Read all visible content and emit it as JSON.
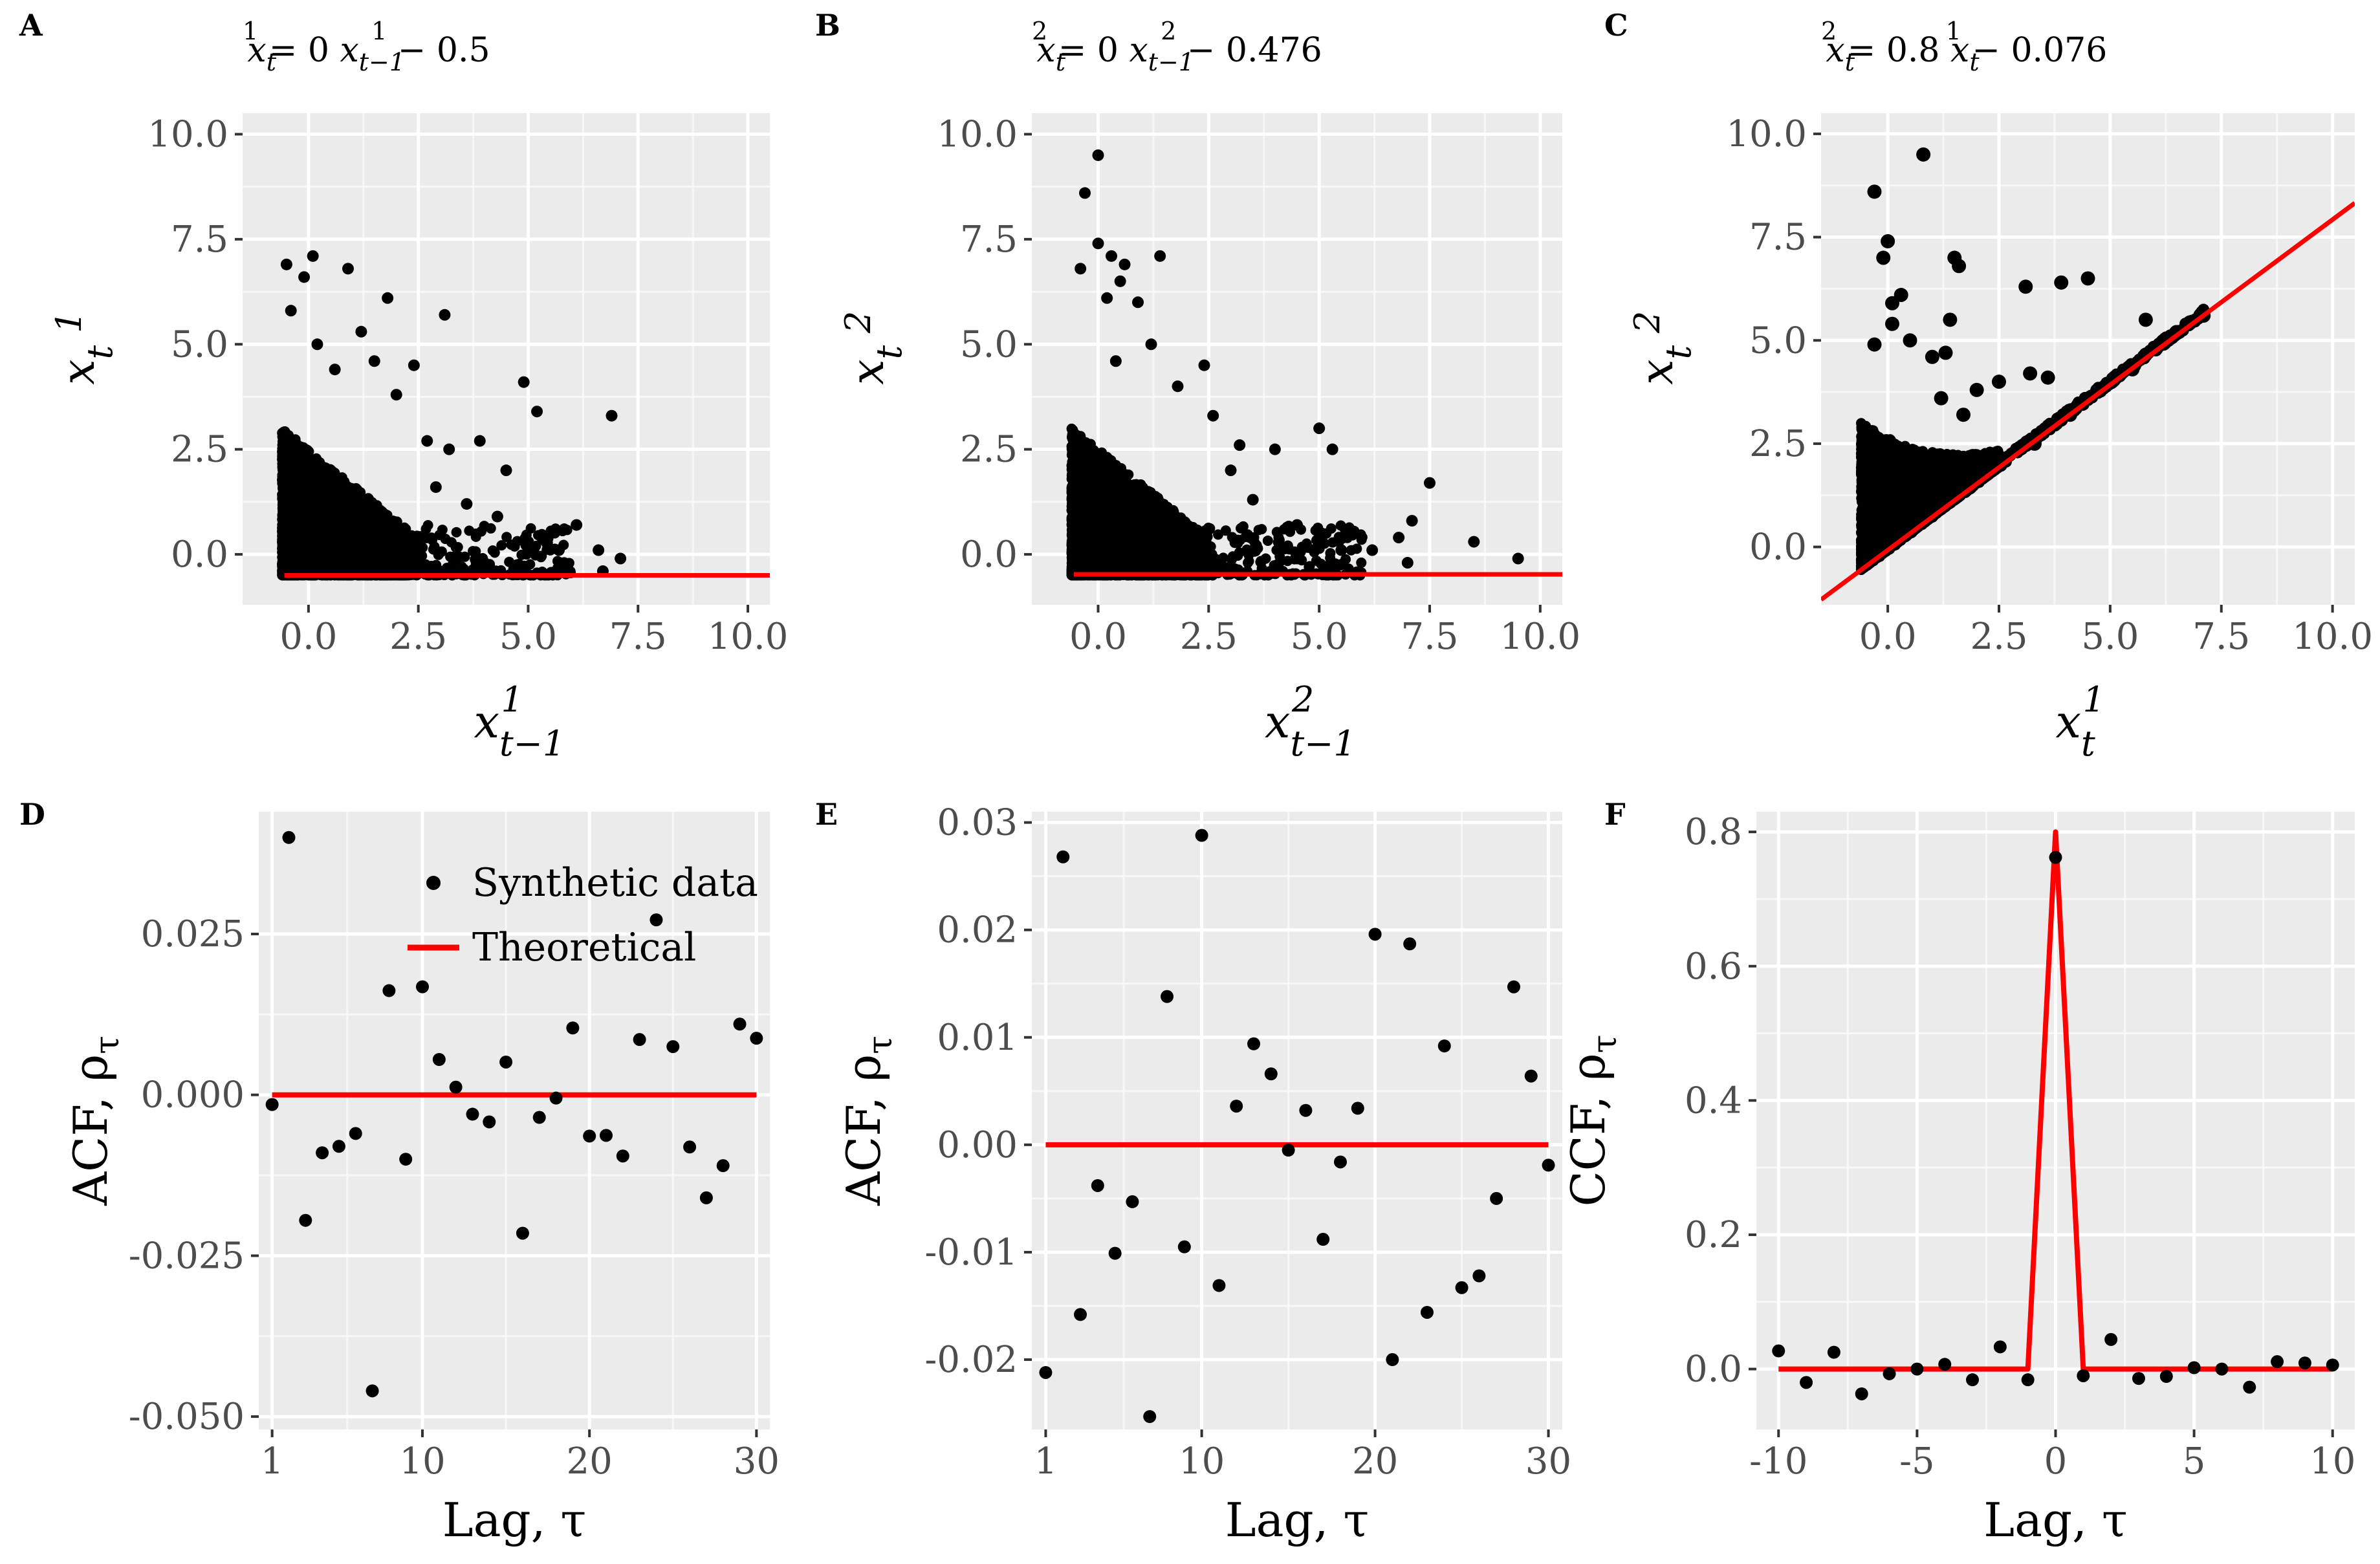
{
  "figure": {
    "panels_labels": [
      "A",
      "B",
      "C",
      "D",
      "E",
      "F"
    ]
  },
  "chart_data": [
    {
      "id": "A",
      "type": "scatter",
      "title": "x_t^1 = 0 x_{t-1}^1 - 0.5",
      "title_parts": {
        "lhs": "x",
        "lhs_sub": "t",
        "lhs_sup": "1",
        "eq": " = 0 ",
        "rhs": "x",
        "rhs_sub": "t−1",
        "rhs_sup": "1",
        "tail": " − 0.5"
      },
      "xlabel": {
        "base": "x",
        "sub": "t−1",
        "sup": "1"
      },
      "ylabel": {
        "base": "x",
        "sub": "t",
        "sup": "1"
      },
      "xlim": [
        -1.5,
        10.5
      ],
      "ylim": [
        -1.2,
        10.5
      ],
      "xticks": [
        "0.0",
        "2.5",
        "5.0",
        "7.5",
        "10.0"
      ],
      "xtick_values": [
        0,
        2.5,
        5,
        7.5,
        10
      ],
      "yticks": [
        "0.0",
        "2.5",
        "5.0",
        "7.5",
        "10.0"
      ],
      "ytick_values": [
        0,
        2.5,
        5,
        7.5,
        10
      ],
      "line": {
        "intercept": -0.5,
        "slope": 0,
        "color": "#ff0000"
      },
      "points": [
        [
          -0.5,
          6.9
        ],
        [
          0.1,
          7.1
        ],
        [
          -0.1,
          6.6
        ],
        [
          0.9,
          6.8
        ],
        [
          -0.4,
          5.8
        ],
        [
          1.8,
          6.1
        ],
        [
          3.1,
          5.7
        ],
        [
          2.4,
          4.5
        ],
        [
          1.2,
          5.3
        ],
        [
          0.2,
          5.0
        ],
        [
          4.9,
          4.1
        ],
        [
          5.2,
          3.4
        ],
        [
          6.9,
          3.3
        ],
        [
          3.9,
          2.7
        ],
        [
          4.5,
          2.0
        ],
        [
          3.2,
          2.5
        ],
        [
          6.1,
          0.7
        ],
        [
          6.6,
          0.1
        ],
        [
          7.1,
          -0.1
        ],
        [
          5.0,
          0.3
        ],
        [
          4.3,
          0.9
        ],
        [
          2.7,
          2.7
        ],
        [
          2.0,
          3.8
        ],
        [
          1.5,
          4.6
        ],
        [
          0.6,
          4.4
        ],
        [
          2.9,
          1.6
        ],
        [
          3.6,
          1.2
        ],
        [
          5.7,
          0.1
        ],
        [
          6.7,
          -0.4
        ],
        [
          4.0,
          -0.2
        ]
      ],
      "dense_extent": {
        "x": [
          -0.6,
          2.5
        ],
        "y": [
          -0.5,
          3.0
        ]
      }
    },
    {
      "id": "B",
      "type": "scatter",
      "title_parts": {
        "lhs": "x",
        "lhs_sub": "t",
        "lhs_sup": "2",
        "eq": " = 0 ",
        "rhs": "x",
        "rhs_sub": "t−1",
        "rhs_sup": "2",
        "tail": " − 0.476"
      },
      "xlabel": {
        "base": "x",
        "sub": "t−1",
        "sup": "2"
      },
      "ylabel": {
        "base": "x",
        "sub": "t",
        "sup": "2"
      },
      "xlim": [
        -1.5,
        10.5
      ],
      "ylim": [
        -1.2,
        10.5
      ],
      "xticks": [
        "0.0",
        "2.5",
        "5.0",
        "7.5",
        "10.0"
      ],
      "xtick_values": [
        0,
        2.5,
        5,
        7.5,
        10
      ],
      "yticks": [
        "0.0",
        "2.5",
        "5.0",
        "7.5",
        "10.0"
      ],
      "ytick_values": [
        0,
        2.5,
        5,
        7.5,
        10
      ],
      "line": {
        "intercept": -0.476,
        "slope": 0,
        "color": "#ff0000"
      },
      "points": [
        [
          0.0,
          9.5
        ],
        [
          -0.3,
          8.6
        ],
        [
          0.0,
          7.4
        ],
        [
          -0.4,
          6.8
        ],
        [
          0.3,
          7.1
        ],
        [
          0.6,
          6.9
        ],
        [
          1.4,
          7.1
        ],
        [
          0.5,
          6.5
        ],
        [
          0.9,
          6.0
        ],
        [
          0.2,
          6.1
        ],
        [
          2.4,
          4.5
        ],
        [
          2.6,
          3.3
        ],
        [
          3.0,
          2.0
        ],
        [
          3.2,
          2.6
        ],
        [
          4.0,
          2.5
        ],
        [
          5.0,
          3.0
        ],
        [
          5.3,
          2.5
        ],
        [
          7.5,
          1.7
        ],
        [
          7.1,
          0.8
        ],
        [
          6.8,
          0.4
        ],
        [
          8.5,
          0.3
        ],
        [
          9.5,
          -0.1
        ],
        [
          7.0,
          -0.2
        ],
        [
          6.2,
          0.1
        ],
        [
          5.5,
          0.1
        ],
        [
          4.5,
          0.7
        ],
        [
          1.8,
          4.0
        ],
        [
          1.2,
          5.0
        ],
        [
          0.4,
          4.6
        ],
        [
          3.5,
          1.3
        ]
      ],
      "dense_extent": {
        "x": [
          -0.6,
          2.5
        ],
        "y": [
          -0.5,
          3.0
        ]
      }
    },
    {
      "id": "C",
      "type": "scatter",
      "title_parts": {
        "lhs": "x",
        "lhs_sub": "t",
        "lhs_sup": "2",
        "eq": " = 0.8 ",
        "rhs": "x",
        "rhs_sub": "t",
        "rhs_sup": "1",
        "tail": " − 0.076"
      },
      "xlabel": {
        "base": "x",
        "sub": "t",
        "sup": "1"
      },
      "ylabel": {
        "base": "x",
        "sub": "t",
        "sup": "2"
      },
      "xlim": [
        -1.5,
        10.5
      ],
      "ylim": [
        -1.4,
        10.5
      ],
      "xticks": [
        "0.0",
        "2.5",
        "5.0",
        "7.5",
        "10.0"
      ],
      "xtick_values": [
        0,
        2.5,
        5,
        7.5,
        10
      ],
      "yticks": [
        "0.0",
        "2.5",
        "5.0",
        "7.5",
        "10.0"
      ],
      "ytick_values": [
        0,
        2.5,
        5,
        7.5,
        10
      ],
      "line": {
        "intercept": -0.076,
        "slope": 0.8,
        "color": "#ff0000"
      },
      "points": [
        [
          -0.3,
          8.6
        ],
        [
          0.8,
          9.5
        ],
        [
          0.0,
          7.4
        ],
        [
          -0.1,
          7.0
        ],
        [
          1.5,
          7.0
        ],
        [
          1.6,
          6.8
        ],
        [
          0.3,
          6.1
        ],
        [
          0.1,
          5.9
        ],
        [
          1.3,
          4.7
        ],
        [
          1.4,
          5.5
        ],
        [
          1.0,
          4.6
        ],
        [
          3.1,
          6.3
        ],
        [
          3.9,
          6.4
        ],
        [
          4.5,
          6.5
        ],
        [
          3.2,
          4.2
        ],
        [
          3.6,
          4.1
        ],
        [
          2.5,
          4.0
        ],
        [
          2.0,
          3.8
        ],
        [
          1.7,
          3.2
        ],
        [
          1.2,
          3.6
        ],
        [
          0.5,
          5.0
        ],
        [
          -0.3,
          4.9
        ],
        [
          0.1,
          5.4
        ],
        [
          5.8,
          5.5
        ],
        [
          6.5,
          5.2
        ],
        [
          7.1,
          5.6
        ],
        [
          5.5,
          4.3
        ],
        [
          4.9,
          3.9
        ],
        [
          4.1,
          3.2
        ],
        [
          3.3,
          2.5
        ]
      ],
      "dense_extent": {
        "x": [
          -0.6,
          2.5
        ],
        "y": [
          -0.5,
          3.0
        ]
      }
    },
    {
      "id": "D",
      "type": "scatter+line",
      "xlabel": "Lag, τ",
      "ylabel": "ACF,  ρ",
      "ylabel_sub": "τ",
      "xlim": [
        0.2,
        30.8
      ],
      "ylim": [
        -0.052,
        0.044
      ],
      "xticks": [
        "1",
        "10",
        "20",
        "30"
      ],
      "xtick_values": [
        1,
        10,
        20,
        30
      ],
      "yticks": [
        "0.025",
        "0.000",
        "-0.025",
        "-0.050"
      ],
      "ytick_values": [
        0.025,
        0,
        -0.025,
        -0.05
      ],
      "legend": {
        "placement": "top-right",
        "items": [
          {
            "label": "Synthetic data",
            "kind": "point"
          },
          {
            "label": "Theoretical",
            "kind": "line"
          }
        ]
      },
      "theoretical": {
        "x": [
          1,
          30
        ],
        "y": [
          0,
          0
        ]
      },
      "x": [
        1,
        2,
        3,
        4,
        5,
        6,
        7,
        8,
        9,
        10,
        11,
        12,
        13,
        14,
        15,
        16,
        17,
        18,
        19,
        20,
        21,
        22,
        23,
        24,
        25,
        26,
        27,
        28,
        29,
        30
      ],
      "values": [
        -0.0015,
        0.04,
        -0.0195,
        -0.009,
        -0.008,
        -0.006,
        -0.046,
        0.0162,
        -0.01,
        0.0168,
        0.0055,
        0.0012,
        -0.003,
        -0.0042,
        0.0051,
        -0.0215,
        -0.0035,
        -0.0005,
        0.0104,
        -0.0064,
        -0.0063,
        -0.0095,
        0.0086,
        0.0272,
        0.0075,
        -0.0081,
        -0.016,
        -0.011,
        0.011,
        0.0088
      ]
    },
    {
      "id": "E",
      "type": "scatter+line",
      "xlabel": "Lag, τ",
      "ylabel": "ACF,  ρ",
      "ylabel_sub": "τ",
      "xlim": [
        0.2,
        30.8
      ],
      "ylim": [
        -0.0265,
        0.031
      ],
      "xticks": [
        "1",
        "10",
        "20",
        "30"
      ],
      "xtick_values": [
        1,
        10,
        20,
        30
      ],
      "yticks": [
        "0.03",
        "0.02",
        "0.01",
        "0.00",
        "-0.01",
        "-0.02"
      ],
      "ytick_values": [
        0.03,
        0.02,
        0.01,
        0,
        -0.01,
        -0.02
      ],
      "theoretical": {
        "x": [
          1,
          30
        ],
        "y": [
          0,
          0
        ]
      },
      "x": [
        1,
        2,
        3,
        4,
        5,
        6,
        7,
        8,
        9,
        10,
        11,
        12,
        13,
        14,
        15,
        16,
        17,
        18,
        19,
        20,
        21,
        22,
        23,
        24,
        25,
        26,
        27,
        28,
        29,
        30
      ],
      "values": [
        -0.0212,
        0.0268,
        -0.0158,
        -0.0038,
        -0.0101,
        -0.0053,
        -0.0253,
        0.0138,
        -0.0095,
        0.0288,
        -0.0131,
        0.0036,
        0.0094,
        0.0066,
        -0.0005,
        0.0032,
        -0.0088,
        -0.0016,
        0.0034,
        0.0196,
        -0.02,
        0.0187,
        -0.0156,
        0.0092,
        -0.0133,
        -0.0122,
        -0.005,
        0.0147,
        0.0064,
        -0.0019
      ]
    },
    {
      "id": "F",
      "type": "scatter+line",
      "xlabel": "Lag, τ",
      "ylabel": "CCF,  ρ",
      "ylabel_sub": "τ",
      "xlim": [
        -10.8,
        10.8
      ],
      "ylim": [
        -0.09,
        0.83
      ],
      "xticks": [
        "-10",
        "-5",
        "0",
        "5",
        "10"
      ],
      "xtick_values": [
        -10,
        -5,
        0,
        5,
        10
      ],
      "yticks": [
        "0.8",
        "0.6",
        "0.4",
        "0.2",
        "0.0"
      ],
      "ytick_values": [
        0.8,
        0.6,
        0.4,
        0.2,
        0
      ],
      "theoretical": {
        "x": [
          -10,
          -1,
          0,
          1,
          10
        ],
        "y": [
          0,
          0,
          0.8,
          0,
          0
        ]
      },
      "x": [
        -10,
        -9,
        -8,
        -7,
        -6,
        -5,
        -4,
        -3,
        -2,
        -1,
        0,
        1,
        2,
        3,
        4,
        5,
        6,
        7,
        8,
        9,
        10
      ],
      "values": [
        0.027,
        -0.02,
        0.025,
        -0.037,
        -0.007,
        0.0,
        0.007,
        -0.016,
        0.033,
        -0.016,
        0.762,
        -0.01,
        0.044,
        -0.014,
        -0.011,
        0.002,
        0.0,
        -0.027,
        0.011,
        0.009,
        0.006
      ]
    }
  ]
}
